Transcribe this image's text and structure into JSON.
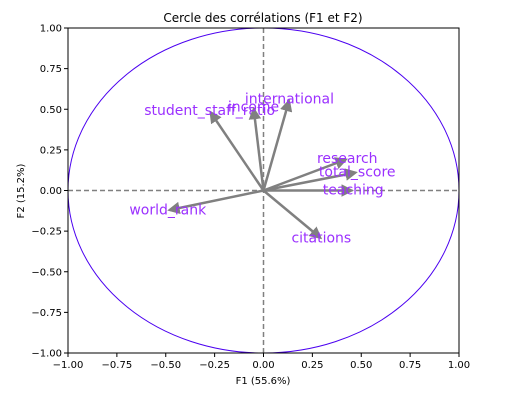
{
  "chart_data": {
    "type": "scatter",
    "title": "Cercle des corrélations (F1 et F2)",
    "xlabel": "F1 (55.6%)",
    "ylabel": "F2 (15.2%)",
    "xlim": [
      -1.0,
      1.0
    ],
    "ylim": [
      -1.0,
      1.0
    ],
    "xticks": [
      "−1.00",
      "−0.75",
      "−0.50",
      "−0.25",
      "0.00",
      "0.25",
      "0.50",
      "0.75",
      "1.00"
    ],
    "yticks": [
      "−1.00",
      "−0.75",
      "−0.50",
      "−0.25",
      "0.00",
      "0.25",
      "0.50",
      "0.75",
      "1.00"
    ],
    "tick_values": [
      -1.0,
      -0.75,
      -0.5,
      -0.25,
      0.0,
      0.25,
      0.5,
      0.75,
      1.0
    ],
    "grid": false,
    "unit_circle": true,
    "reference_lines": "dashed at x=0 and y=0",
    "colors": {
      "arrow": "#808080",
      "label": "#9b30ff",
      "circle": "#4b00f0",
      "reference": "#808080"
    },
    "series": [
      {
        "name": "student_staff_ratio",
        "x": -0.27,
        "y": 0.48,
        "label": "student_staff_ratio"
      },
      {
        "name": "income",
        "x": -0.05,
        "y": 0.5,
        "label": "income"
      },
      {
        "name": "international",
        "x": 0.13,
        "y": 0.55,
        "label": "international"
      },
      {
        "name": "research",
        "x": 0.42,
        "y": 0.19,
        "label": "research"
      },
      {
        "name": "total_score",
        "x": 0.47,
        "y": 0.11,
        "label": "total_score"
      },
      {
        "name": "teaching",
        "x": 0.45,
        "y": 0.0,
        "label": "teaching"
      },
      {
        "name": "world_rank",
        "x": -0.48,
        "y": -0.12,
        "label": "world_rank"
      },
      {
        "name": "citations",
        "x": 0.29,
        "y": -0.29,
        "label": "citations"
      }
    ]
  }
}
